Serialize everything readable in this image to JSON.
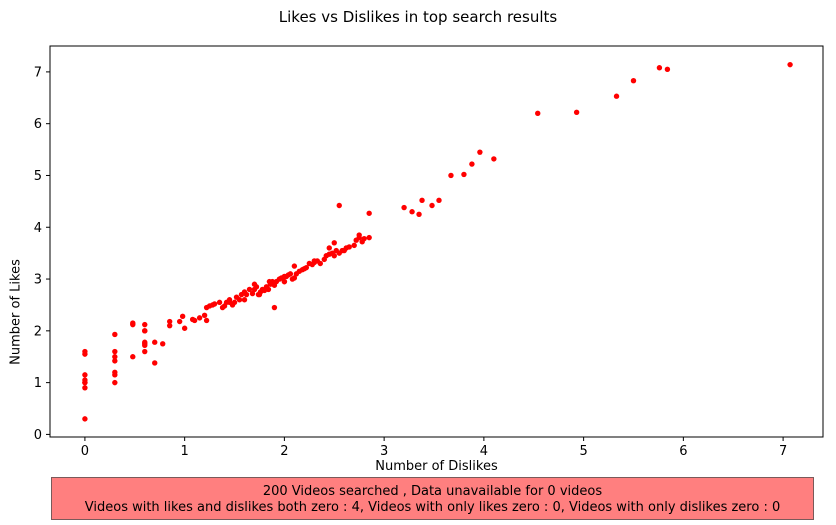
{
  "chart_data": {
    "type": "scatter",
    "title": "Likes vs Dislikes in top search results",
    "xlabel": "Number of Dislikes",
    "ylabel": "Number of Likes",
    "xlim": [
      -0.35,
      7.4
    ],
    "ylim": [
      -0.05,
      7.5
    ],
    "xticks": [
      0,
      1,
      2,
      3,
      4,
      5,
      6,
      7
    ],
    "yticks": [
      0,
      1,
      2,
      3,
      4,
      5,
      6,
      7
    ],
    "grid": false,
    "series": [
      {
        "color": "#ff0000",
        "x": [
          0,
          0,
          0,
          0,
          0,
          0,
          0,
          0,
          0.3,
          0.3,
          0.3,
          0.3,
          0.3,
          0.3,
          0.3,
          0.48,
          0.48,
          0.48,
          0.6,
          0.6,
          0.6,
          0.6,
          0.6,
          0.6,
          0.6,
          0.7,
          0.7,
          0.78,
          0.85,
          0.85,
          0.95,
          0.98,
          1.0,
          1.08,
          1.1,
          1.15,
          1.2,
          1.22,
          1.25,
          1.28,
          1.3,
          1.35,
          1.38,
          1.4,
          1.42,
          1.45,
          1.48,
          1.5,
          1.52,
          1.55,
          1.57,
          1.6,
          1.62,
          1.65,
          1.68,
          1.7,
          1.72,
          1.74,
          1.76,
          1.78,
          1.8,
          1.82,
          1.84,
          1.86,
          1.88,
          1.9,
          1.92,
          1.95,
          1.97,
          2.0,
          2.02,
          2.04,
          2.06,
          2.08,
          2.1,
          2.12,
          2.15,
          2.18,
          2.2,
          2.22,
          2.25,
          2.28,
          2.3,
          2.33,
          2.36,
          2.4,
          2.42,
          2.45,
          2.48,
          2.5,
          2.52,
          2.55,
          2.58,
          2.62,
          2.65,
          2.7,
          2.72,
          2.75,
          2.78,
          2.8,
          2.85,
          2.45,
          2.5,
          2.55,
          2.6,
          2.75,
          2.85,
          1.6,
          1.75,
          1.85,
          2.0,
          2.1,
          2.3,
          1.22,
          1.9,
          1.7,
          1.45,
          2.0,
          3.2,
          3.28,
          3.35,
          3.38,
          3.48,
          3.55,
          3.67,
          3.8,
          3.88,
          3.96,
          4.1,
          4.54,
          4.93,
          5.33,
          5.5,
          5.76,
          5.84,
          7.07
        ],
        "y": [
          0.3,
          0.9,
          1.0,
          1.05,
          1.15,
          1.55,
          1.6,
          1.0,
          1.0,
          1.15,
          1.2,
          1.42,
          1.5,
          1.6,
          1.93,
          1.5,
          2.12,
          2.15,
          1.6,
          1.72,
          1.78,
          2.0,
          2.12,
          1.75,
          2.0,
          1.38,
          1.78,
          1.75,
          2.1,
          2.18,
          2.18,
          2.28,
          2.05,
          2.22,
          2.2,
          2.25,
          2.3,
          2.45,
          2.48,
          2.5,
          2.52,
          2.55,
          2.45,
          2.48,
          2.55,
          2.6,
          2.5,
          2.55,
          2.65,
          2.6,
          2.7,
          2.75,
          2.7,
          2.8,
          2.72,
          2.8,
          2.85,
          2.7,
          2.75,
          2.8,
          2.78,
          2.85,
          2.8,
          2.9,
          2.95,
          2.88,
          2.95,
          3.0,
          3.02,
          2.95,
          3.05,
          3.08,
          3.1,
          3.0,
          3.02,
          3.1,
          3.15,
          3.18,
          3.2,
          3.22,
          3.3,
          3.28,
          3.32,
          3.35,
          3.3,
          3.38,
          3.45,
          3.48,
          3.5,
          3.45,
          3.55,
          3.5,
          3.55,
          3.6,
          3.62,
          3.65,
          3.75,
          3.8,
          3.72,
          3.78,
          3.8,
          3.6,
          3.7,
          4.42,
          3.55,
          3.85,
          4.27,
          2.6,
          2.7,
          2.95,
          3.05,
          3.25,
          3.35,
          2.2,
          2.45,
          2.9,
          2.55,
          2.95,
          4.38,
          4.3,
          4.25,
          4.52,
          4.42,
          4.52,
          5.0,
          5.02,
          5.22,
          5.45,
          5.32,
          6.2,
          6.22,
          6.53,
          6.83,
          7.08,
          7.05,
          7.14
        ]
      }
    ]
  },
  "summary": {
    "line1": "200 Videos searched , Data unavailable for 0 videos",
    "line2": "Videos with likes and dislikes both zero : 4, Videos with only likes zero : 0, Videos with only dislikes zero : 0"
  }
}
